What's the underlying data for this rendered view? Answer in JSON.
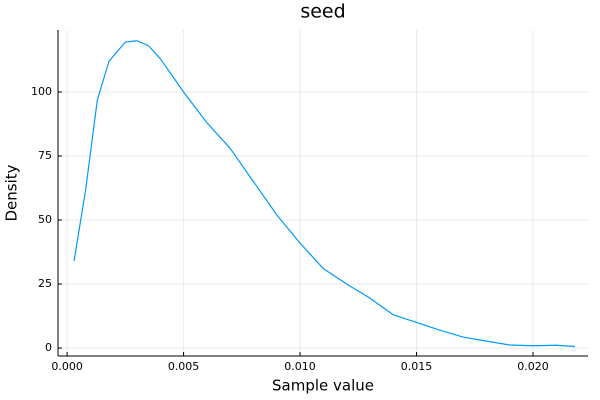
{
  "chart_data": {
    "type": "line",
    "title": "seed",
    "x_label": "Sample value",
    "y_label": "Density",
    "x": [
      0.0003,
      0.0008,
      0.0013,
      0.0018,
      0.0025,
      0.003,
      0.0035,
      0.004,
      0.005,
      0.006,
      0.007,
      0.008,
      0.009,
      0.01,
      0.011,
      0.012,
      0.013,
      0.014,
      0.015,
      0.016,
      0.017,
      0.018,
      0.019,
      0.02,
      0.021,
      0.0218
    ],
    "series": [
      {
        "color": "#009af9",
        "values": [
          34,
          62,
          97,
          112,
          119.5,
          120,
          118,
          113,
          100,
          88,
          78,
          65,
          52,
          41,
          31,
          25,
          19.5,
          13,
          10,
          7,
          4.3,
          2.7,
          1.2,
          0.9,
          1.1,
          0.6
        ]
      }
    ],
    "xlim": [
      -0.00039,
      0.02236
    ],
    "ylim": [
      -3.1,
      124.2
    ],
    "xticks": [
      {
        "value": 0,
        "label": "0.000"
      },
      {
        "value": 0.005,
        "label": "0.005"
      },
      {
        "value": 0.01,
        "label": "0.010"
      },
      {
        "value": 0.015,
        "label": "0.015"
      },
      {
        "value": 0.02,
        "label": "0.020"
      }
    ],
    "yticks": [
      0,
      25,
      50,
      75,
      100
    ],
    "grid": true
  }
}
